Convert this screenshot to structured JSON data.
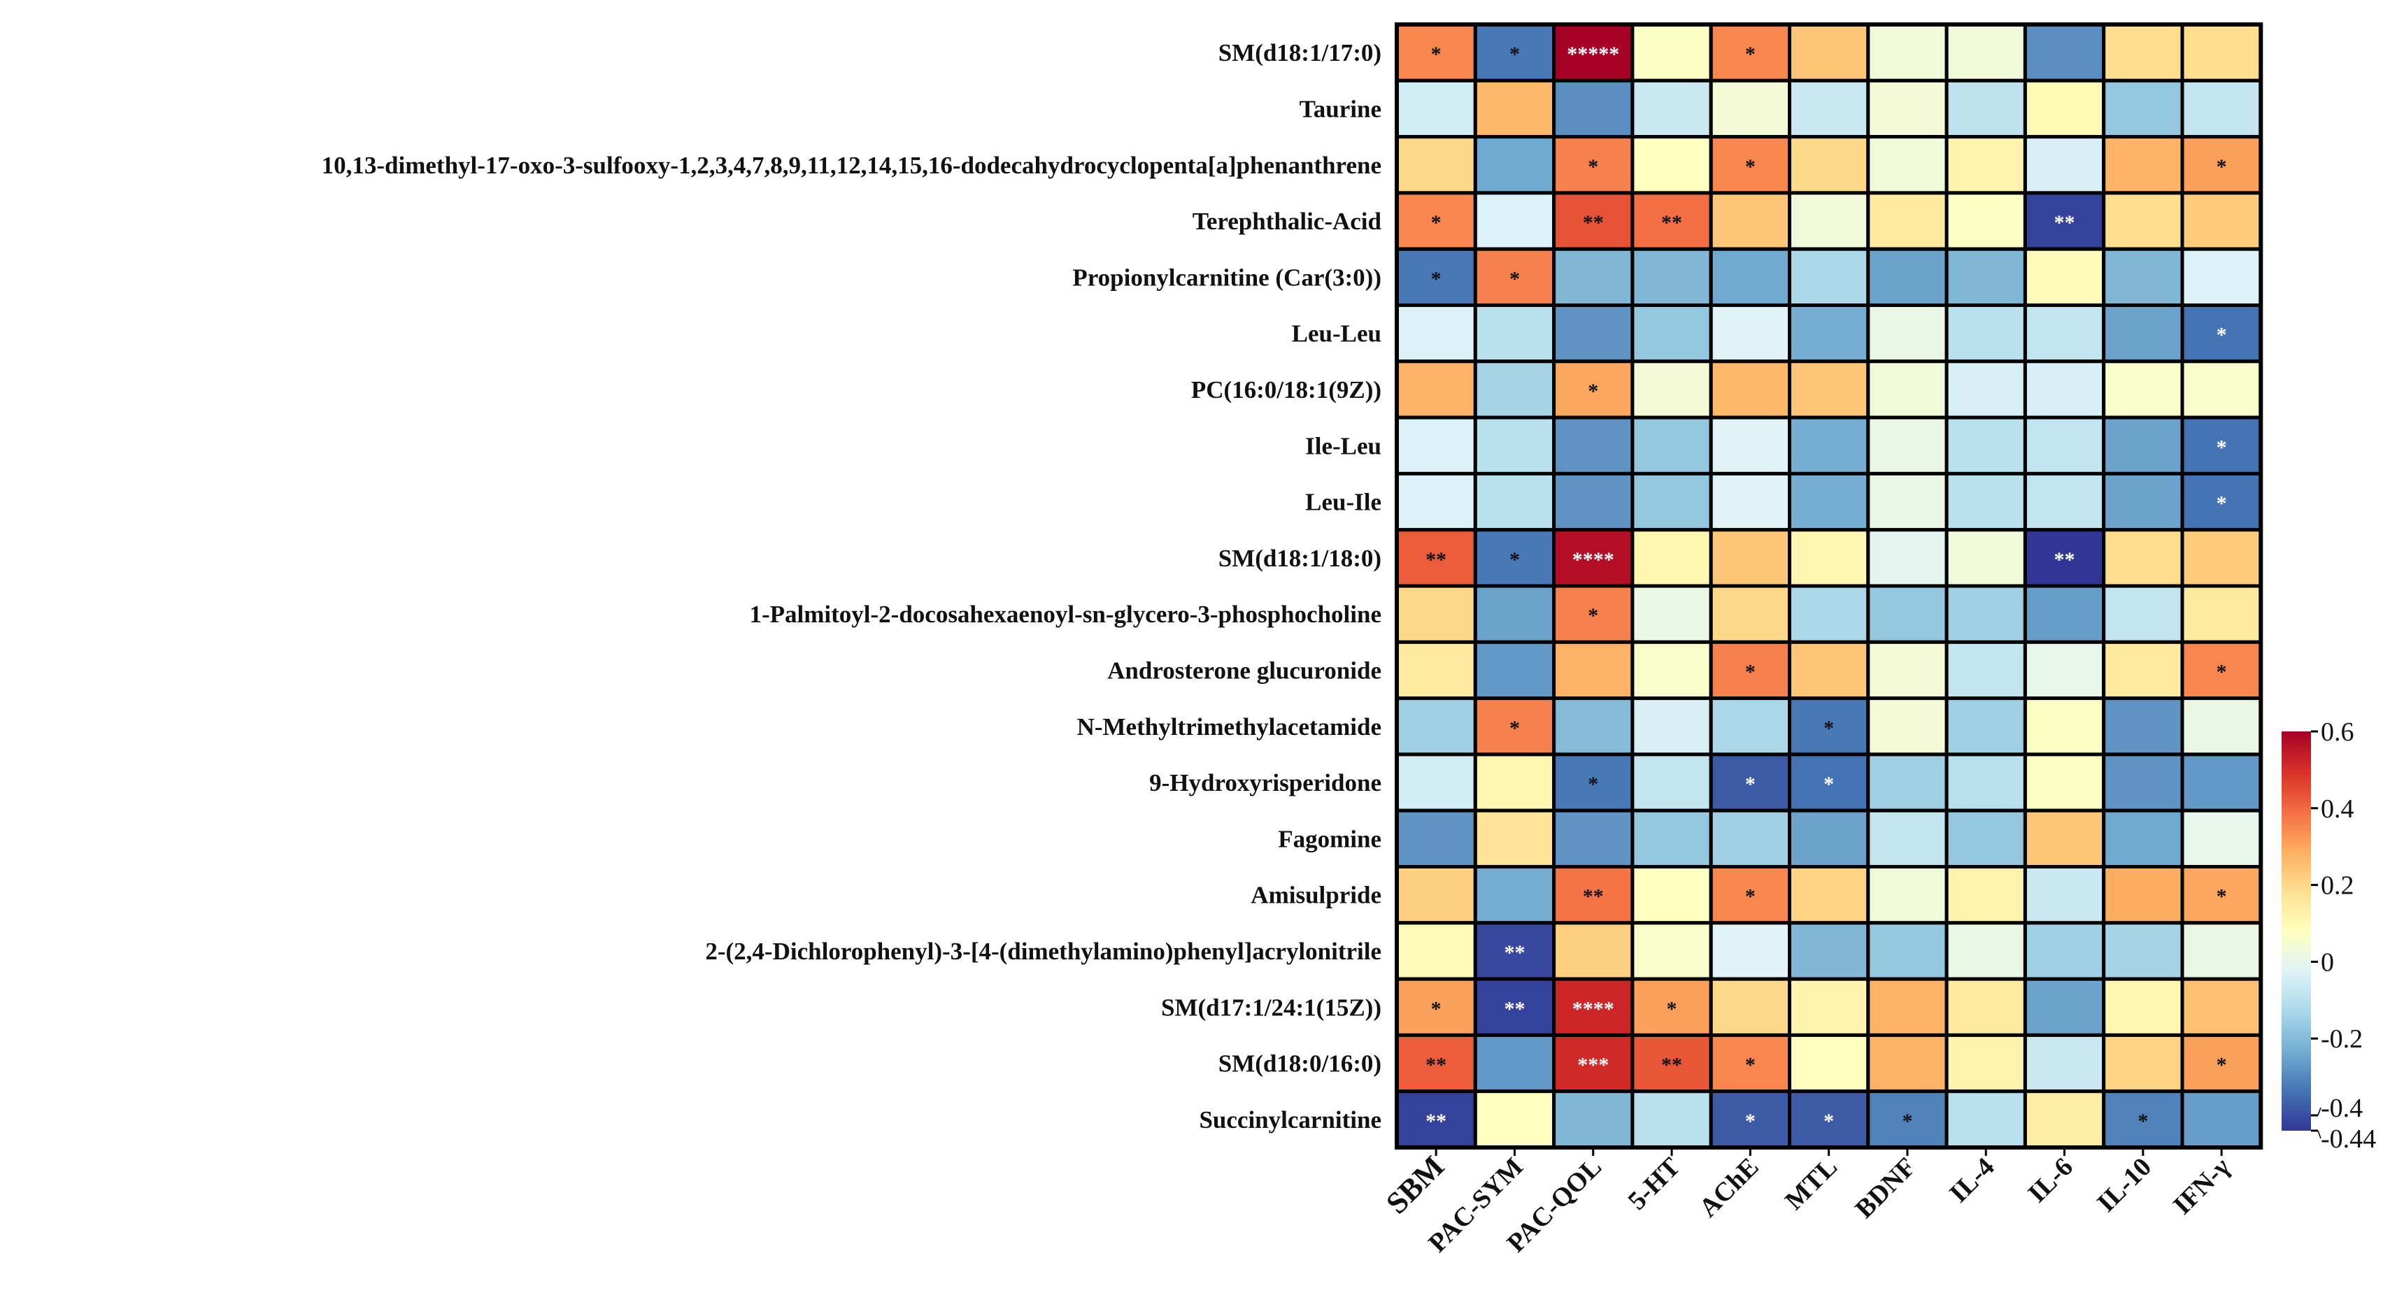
{
  "chart_data": {
    "type": "heatmap",
    "title": "",
    "xlabel": "",
    "ylabel": "",
    "colormap": "RdYlBu_r",
    "vmin": -0.44,
    "vmax": 0.6,
    "colorbar_ticks": [
      "0.6",
      "0.4",
      "0.2",
      "0",
      "-0.2",
      "-0.4",
      "-0.44"
    ],
    "colorbar_tick_values": [
      0.6,
      0.4,
      0.2,
      0,
      -0.2,
      -0.4,
      -0.44
    ],
    "colorbar_placement": "right",
    "columns": [
      "SBM",
      "PAC-SYM",
      "PAC-QOL",
      "5-HT",
      "AChE",
      "MTL",
      "BDNF",
      "IL-4",
      "IL-6",
      "IL-10",
      "IFN-γ"
    ],
    "rows": [
      "SM(d18:1/17:0)",
      "Taurine",
      "10,13-dimethyl-17-oxo-3-sulfooxy-1,2,3,4,7,8,9,11,12,14,15,16-dodecahydrocyclopenta[a]phenanthrene",
      "Terephthalic-Acid",
      "Propionylcarnitine (Car(3:0))",
      "Leu-Leu",
      "PC(16:0/18:1(9Z))",
      "Ile-Leu",
      "Leu-Ile",
      "SM(d18:1/18:0)",
      "1-Palmitoyl-2-docosahexaenoyl-sn-glycero-3-phosphocholine",
      "Androsterone glucuronide",
      "N-Methyltrimethylacetamide",
      "9-Hydroxyrisperidone",
      "Fagomine",
      "Amisulpride",
      "2-(2,4-Dichlorophenyl)-3-[4-(dimethylamino)phenyl]acrylonitrile",
      "SM(d17:1/24:1(15Z))",
      "SM(d18:0/16:0)",
      "Succinylcarnitine"
    ],
    "values": [
      [
        0.35,
        -0.33,
        0.6,
        0.07,
        0.35,
        0.24,
        0.03,
        0.03,
        -0.29,
        0.19,
        0.19
      ],
      [
        -0.05,
        0.27,
        -0.29,
        -0.07,
        0.04,
        -0.07,
        0.04,
        -0.09,
        0.1,
        -0.17,
        -0.08
      ],
      [
        0.2,
        -0.24,
        0.36,
        0.08,
        0.35,
        0.2,
        0.03,
        0.12,
        -0.04,
        0.28,
        0.31
      ],
      [
        0.35,
        -0.03,
        0.44,
        0.39,
        0.24,
        0.03,
        0.15,
        0.07,
        -0.42,
        0.19,
        0.23
      ],
      [
        -0.33,
        0.36,
        -0.21,
        -0.21,
        -0.24,
        -0.13,
        -0.25,
        -0.21,
        0.09,
        -0.21,
        -0.03
      ],
      [
        -0.03,
        -0.1,
        -0.28,
        -0.17,
        -0.02,
        -0.23,
        0.01,
        -0.1,
        -0.08,
        -0.25,
        -0.34
      ],
      [
        0.28,
        -0.14,
        0.3,
        0.04,
        0.27,
        0.24,
        0.03,
        -0.04,
        -0.04,
        0.06,
        0.06
      ],
      [
        -0.03,
        -0.1,
        -0.28,
        -0.17,
        -0.02,
        -0.23,
        0.01,
        -0.1,
        -0.08,
        -0.25,
        -0.34
      ],
      [
        -0.03,
        -0.1,
        -0.28,
        -0.17,
        -0.02,
        -0.23,
        0.01,
        -0.1,
        -0.08,
        -0.25,
        -0.34
      ],
      [
        0.42,
        -0.33,
        0.57,
        0.11,
        0.24,
        0.11,
        -0.01,
        0.03,
        -0.44,
        0.19,
        0.23
      ],
      [
        0.2,
        -0.25,
        0.36,
        0.01,
        0.2,
        -0.13,
        -0.17,
        -0.15,
        -0.26,
        -0.08,
        0.15
      ],
      [
        0.15,
        -0.27,
        0.28,
        0.06,
        0.36,
        0.24,
        0.04,
        -0.08,
        0.0,
        0.15,
        0.35
      ],
      [
        -0.15,
        0.36,
        -0.2,
        -0.04,
        -0.13,
        -0.33,
        0.04,
        -0.15,
        0.07,
        -0.28,
        0.01
      ],
      [
        -0.05,
        0.11,
        -0.33,
        -0.08,
        -0.38,
        -0.34,
        -0.15,
        -0.1,
        0.07,
        -0.28,
        -0.27
      ],
      [
        -0.28,
        0.17,
        -0.28,
        -0.17,
        -0.15,
        -0.25,
        -0.08,
        -0.17,
        0.24,
        -0.24,
        0.0
      ],
      [
        0.22,
        -0.23,
        0.38,
        0.08,
        0.35,
        0.21,
        0.03,
        0.12,
        -0.07,
        0.29,
        0.3
      ],
      [
        0.09,
        -0.41,
        0.22,
        0.06,
        -0.02,
        -0.21,
        -0.17,
        0.01,
        -0.15,
        -0.14,
        0.01
      ],
      [
        0.31,
        -0.42,
        0.52,
        0.31,
        0.2,
        0.12,
        0.28,
        0.15,
        -0.25,
        0.11,
        0.25
      ],
      [
        0.42,
        -0.27,
        0.51,
        0.43,
        0.35,
        0.08,
        0.28,
        0.12,
        -0.07,
        0.21,
        0.31
      ],
      [
        -0.42,
        0.08,
        -0.21,
        -0.1,
        -0.38,
        -0.38,
        -0.31,
        -0.1,
        0.14,
        -0.31,
        -0.26
      ]
    ],
    "significance": [
      [
        "*",
        "*",
        "*****",
        "",
        "*",
        "",
        "",
        "",
        "",
        "",
        ""
      ],
      [
        "",
        "",
        "",
        "",
        "",
        "",
        "",
        "",
        "",
        "",
        ""
      ],
      [
        "",
        "",
        "*",
        "",
        "*",
        "",
        "",
        "",
        "",
        "",
        "*"
      ],
      [
        "*",
        "",
        "**",
        "**",
        "",
        "",
        "",
        "",
        "**",
        "",
        ""
      ],
      [
        "*",
        "*",
        "",
        "",
        "",
        "",
        "",
        "",
        "",
        "",
        ""
      ],
      [
        "",
        "",
        "",
        "",
        "",
        "",
        "",
        "",
        "",
        "",
        "*"
      ],
      [
        "",
        "",
        "*",
        "",
        "",
        "",
        "",
        "",
        "",
        "",
        ""
      ],
      [
        "",
        "",
        "",
        "",
        "",
        "",
        "",
        "",
        "",
        "",
        "*"
      ],
      [
        "",
        "",
        "",
        "",
        "",
        "",
        "",
        "",
        "",
        "",
        "*"
      ],
      [
        "**",
        "*",
        "****",
        "",
        "",
        "",
        "",
        "",
        "**",
        "",
        ""
      ],
      [
        "",
        "",
        "*",
        "",
        "",
        "",
        "",
        "",
        "",
        "",
        ""
      ],
      [
        "",
        "",
        "",
        "",
        "*",
        "",
        "",
        "",
        "",
        "",
        "*"
      ],
      [
        "",
        "*",
        "",
        "",
        "",
        "*",
        "",
        "",
        "",
        "",
        ""
      ],
      [
        "",
        "",
        "*",
        "",
        "*",
        "*",
        "",
        "",
        "",
        "",
        ""
      ],
      [
        "",
        "",
        "",
        "",
        "",
        "",
        "",
        "",
        "",
        "",
        ""
      ],
      [
        "",
        "",
        "**",
        "",
        "*",
        "",
        "",
        "",
        "",
        "",
        "*"
      ],
      [
        "",
        "**",
        "",
        "",
        "",
        "",
        "",
        "",
        "",
        "",
        ""
      ],
      [
        "*",
        "**",
        "****",
        "*",
        "",
        "",
        "",
        "",
        "",
        "",
        ""
      ],
      [
        "**",
        "",
        "***",
        "**",
        "*",
        "",
        "",
        "",
        "",
        "",
        "*"
      ],
      [
        "**",
        "",
        "",
        "",
        "*",
        "*",
        "*",
        "",
        "",
        "*",
        ""
      ]
    ]
  }
}
